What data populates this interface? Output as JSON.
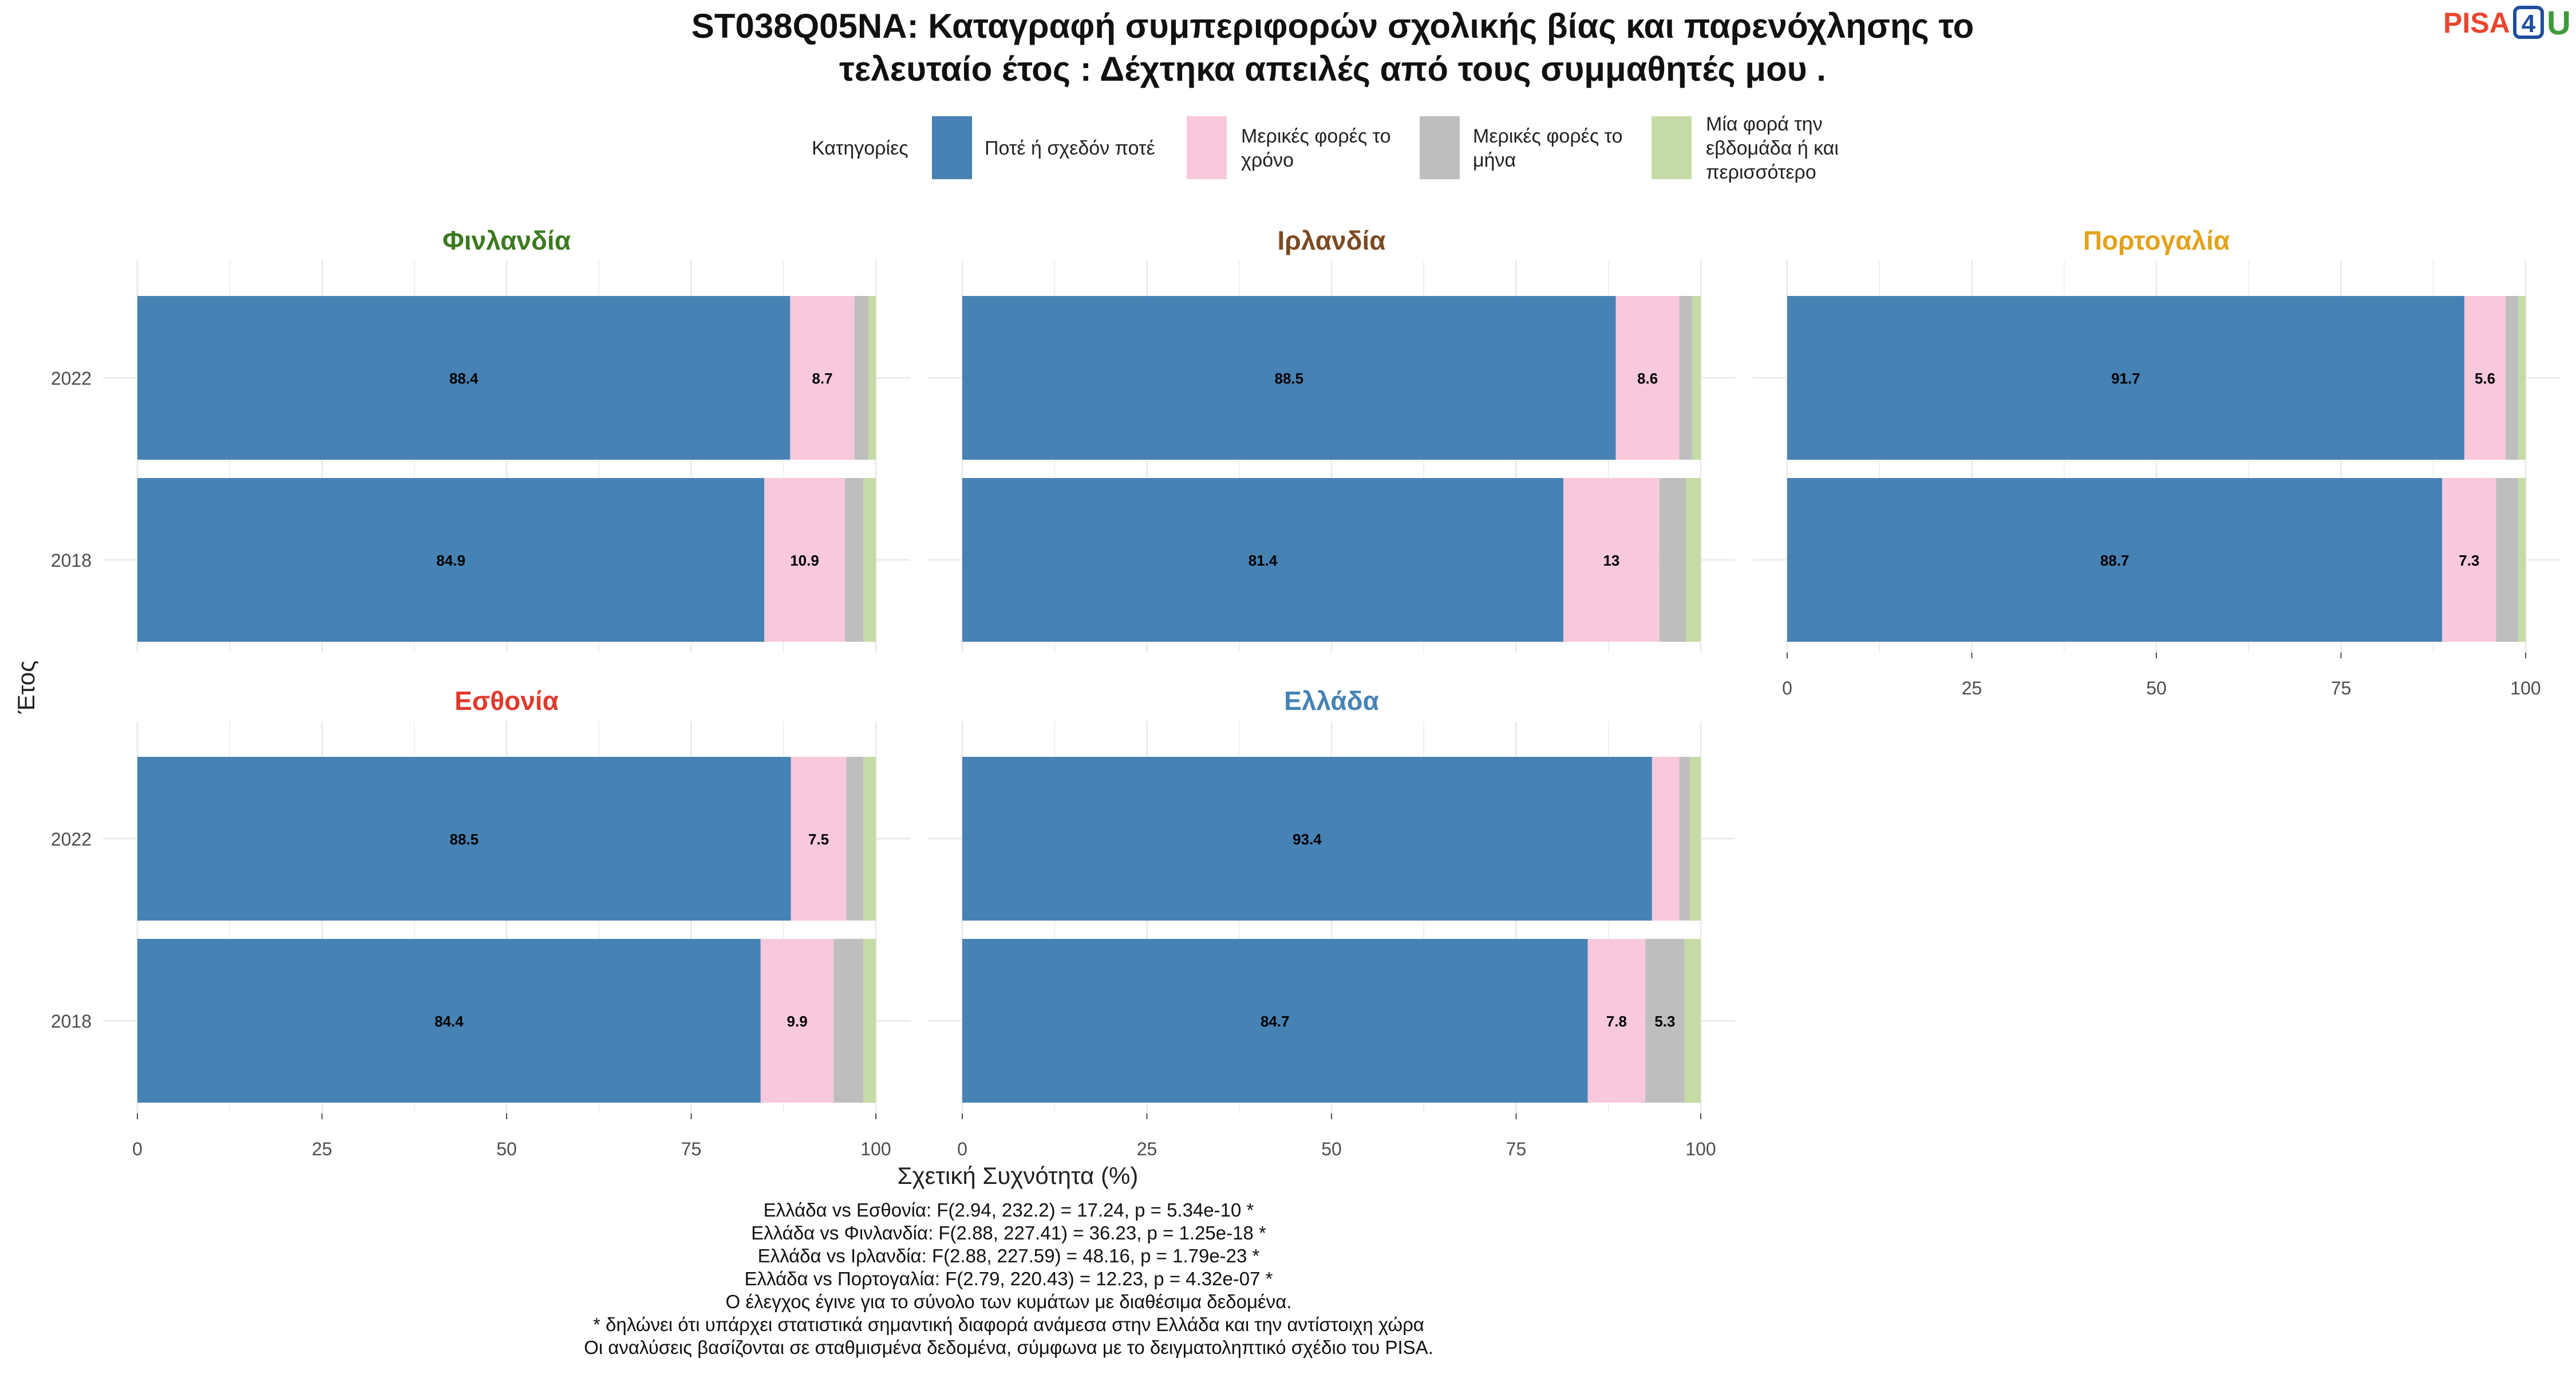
{
  "title_line1": "ST038Q05NA: Καταγραφή συμπεριφορών σχολικής βίας και παρενόχλησης το",
  "title_line2": "τελευταίο έτος : Δέχτηκα απειλές από τους συμμαθητές μου .",
  "logo": {
    "pisa": "PISA",
    "four": "4",
    "u": "U",
    "colors": {
      "pisa": "#e8472f",
      "four": "#1f4e9a",
      "u": "#3f9a3a"
    }
  },
  "legend": {
    "title": "Κατηγορίες",
    "items": [
      {
        "label_lines": [
          "Ποτέ ή σχεδόν ποτέ"
        ],
        "color": "#4682b4"
      },
      {
        "label_lines": [
          "Μερικές φορές το",
          "χρόνο"
        ],
        "color": "#f8c8dc"
      },
      {
        "label_lines": [
          "Μερικές φορές το",
          "μήνα"
        ],
        "color": "#bebebe"
      },
      {
        "label_lines": [
          "Μία φορά την",
          "εβδομάδα ή και",
          "περισσότερο"
        ],
        "color": "#c5dba5"
      }
    ]
  },
  "y_axis_label": "Έτος",
  "x_axis_label": "Σχετική Συχνότητα (%)",
  "chart_data": {
    "type": "bar",
    "orientation": "horizontal",
    "stacked": true,
    "xlim": [
      0,
      100
    ],
    "x_ticks": [
      0,
      25,
      50,
      75,
      100
    ],
    "categories": [
      "2022",
      "2018"
    ],
    "series_names": [
      "Ποτέ ή σχεδόν ποτέ",
      "Μερικές φορές το χρόνο",
      "Μερικές φορές το μήνα",
      "Μία φορά την εβδομάδα ή και περισσότερο"
    ],
    "panels": [
      {
        "country": "Φινλανδία",
        "color": "#3d7a1f",
        "values": {
          "2022": [
            88.4,
            8.7,
            1.9,
            1.0
          ],
          "2018": [
            84.9,
            10.9,
            2.5,
            1.7
          ]
        },
        "labels": {
          "2022": [
            "88.4",
            "8.7",
            "",
            ""
          ],
          "2018": [
            "84.9",
            "10.9",
            "",
            ""
          ]
        }
      },
      {
        "country": "Ιρλανδία",
        "color": "#7b4a22",
        "values": {
          "2022": [
            88.5,
            8.6,
            1.7,
            1.2
          ],
          "2018": [
            81.4,
            13.0,
            3.6,
            2.0
          ]
        },
        "labels": {
          "2022": [
            "88.5",
            "8.6",
            "",
            ""
          ],
          "2018": [
            "81.4",
            "13",
            "",
            ""
          ]
        }
      },
      {
        "country": "Πορτογαλία",
        "color": "#e3a21a",
        "values": {
          "2022": [
            91.7,
            5.6,
            1.7,
            1.0
          ],
          "2018": [
            88.7,
            7.3,
            3.0,
            1.0
          ]
        },
        "labels": {
          "2022": [
            "91.7",
            "5.6",
            "",
            ""
          ],
          "2018": [
            "88.7",
            "7.3",
            "",
            ""
          ]
        }
      },
      {
        "country": "Εσθονία",
        "color": "#e0392b",
        "values": {
          "2022": [
            88.5,
            7.5,
            2.3,
            1.7
          ],
          "2018": [
            84.4,
            9.9,
            4.0,
            1.7
          ]
        },
        "labels": {
          "2022": [
            "88.5",
            "7.5",
            "",
            ""
          ],
          "2018": [
            "84.4",
            "9.9",
            "",
            ""
          ]
        }
      },
      {
        "country": "Ελλάδα",
        "color": "#4682b4",
        "values": {
          "2022": [
            93.4,
            3.7,
            1.4,
            1.5
          ],
          "2018": [
            84.7,
            7.8,
            5.3,
            2.2
          ]
        },
        "labels": {
          "2022": [
            "93.4",
            "",
            "",
            ""
          ],
          "2018": [
            "84.7",
            "7.8",
            "5.3",
            ""
          ]
        }
      }
    ]
  },
  "footnotes": [
    "Ελλάδα vs Εσθονία: F(2.94, 232.2) = 17.24, p = 5.34e-10 *",
    "Ελλάδα vs Φινλανδία: F(2.88, 227.41) = 36.23, p = 1.25e-18 *",
    "Ελλάδα vs Ιρλανδία: F(2.88, 227.59) = 48.16, p = 1.79e-23 *",
    "Ελλάδα vs Πορτογαλία: F(2.79, 220.43) = 12.23, p = 4.32e-07 *",
    "Ο έλεγχος έγινε για το σύνολο των κυμάτων με διαθέσιμα δεδομένα.",
    "* δηλώνει ότι υπάρχει στατιστικά σημαντική διαφορά ανάμεσα στην Ελλάδα και την αντίστοιχη χώρα",
    "Οι αναλύσεις βασίζονται σε σταθμισμένα δεδομένα, σύμφωνα με το δειγματοληπτικό σχέδιο του PISA."
  ]
}
